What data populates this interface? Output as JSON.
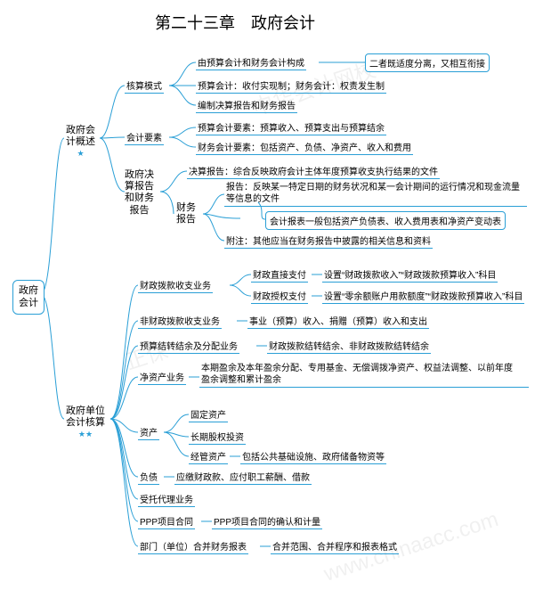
{
  "title": "第二十三章　政府会计",
  "colors": {
    "stroke": "#2a9fd6",
    "text": "#000000",
    "bg": "#ffffff",
    "watermark": "rgba(0,0,0,0.06)"
  },
  "font": {
    "title_size": 18,
    "branch_size": 11,
    "leaf_size": 10
  },
  "watermark_samples": [
    "中华会计网校",
    "www.chinaacc.com",
    "正保"
  ],
  "root": {
    "label": "政府\n会计"
  },
  "branches": [
    {
      "id": "gov-acct-overview",
      "label": "政府会\n计概述",
      "stars": 1,
      "children": [
        {
          "id": "accounting-model",
          "label": "核算模式",
          "children": [
            {
              "id": "am1",
              "label": "由预算会计和财务会计构成",
              "note_box": "二者既适度分离，又相互衔接"
            },
            {
              "id": "am2",
              "label": "预算会计：收付实现制；财务会计：权责发生制"
            },
            {
              "id": "am3",
              "label": "编制决算报告和财务报告"
            }
          ]
        },
        {
          "id": "accounting-elements",
          "label": "会计要素",
          "children": [
            {
              "id": "ae1",
              "label": "预算会计要素：预算收入、预算支出与预算结余"
            },
            {
              "id": "ae2",
              "label": "财务会计要素：包括资产、负债、净资产、收入和费用"
            }
          ]
        },
        {
          "id": "reports",
          "label": "政府决\n算报告\n和财务\n报告",
          "children": [
            {
              "id": "rp1",
              "label": "决算报告：综合反映政府会计主体年度预算收支执行结果的文件"
            },
            {
              "id": "fin-report",
              "label": "财务\n报告",
              "children": [
                {
                  "id": "fr1",
                  "label": "报告：反映某一特定日期的财务状况和某一会计期间的运行情况和现金流量\n等信息的文件"
                },
                {
                  "id": "fr2",
                  "box": true,
                  "label": "会计报表一般包括资产负债表、收入费用表和净资产变动表"
                },
                {
                  "id": "fr3",
                  "label": "附注：其他应当在财务报告中披露的相关信息和资料"
                }
              ]
            }
          ]
        }
      ]
    },
    {
      "id": "gov-unit-accounting",
      "label": "政府单位\n会计核算",
      "stars": 2,
      "children": [
        {
          "id": "fis-appropriation",
          "label": "财政拨款收支业务",
          "children": [
            {
              "id": "fa1",
              "label": "财政直接支付",
              "note": "设置“财政拨款收入”“财政拨款预算收入”科目"
            },
            {
              "id": "fa2",
              "label": "财政授权支付",
              "note": "设置“零余额账户用款额度”“财政拨款预算收入”科目"
            }
          ]
        },
        {
          "id": "non-fis",
          "label": "非财政拨款收支业务",
          "note": "事业（预算）收入、捐赠（预算）收入和支出"
        },
        {
          "id": "carryover",
          "label": "预算结转结余及分配业务",
          "note": "财政拨款结转结余、非财政拨款结转结余"
        },
        {
          "id": "net-assets-biz",
          "label": "净资产业务",
          "note": "本期盈余及本年盈余分配、专用基金、无偿调拨净资产、权益法调整、以前年度\n盈余调整和累计盈余"
        },
        {
          "id": "assets",
          "label": "资产",
          "children": [
            {
              "id": "as1",
              "label": "固定资产"
            },
            {
              "id": "as2",
              "label": "长期股权投资"
            },
            {
              "id": "as3",
              "label": "经管资产",
              "note": "包括公共基础设施、政府储备物资等"
            }
          ]
        },
        {
          "id": "liabilities",
          "label": "负债",
          "note": "应缴财政款、应付职工薪酬、借款"
        },
        {
          "id": "trust",
          "label": "受托代理业务"
        },
        {
          "id": "ppp",
          "label": "PPP项目合同",
          "note": "PPP项目合同的确认和计量"
        },
        {
          "id": "consol",
          "label": "部门（单位）合并财务报表",
          "note": "合并范围、合并程序和报表格式"
        }
      ]
    }
  ]
}
